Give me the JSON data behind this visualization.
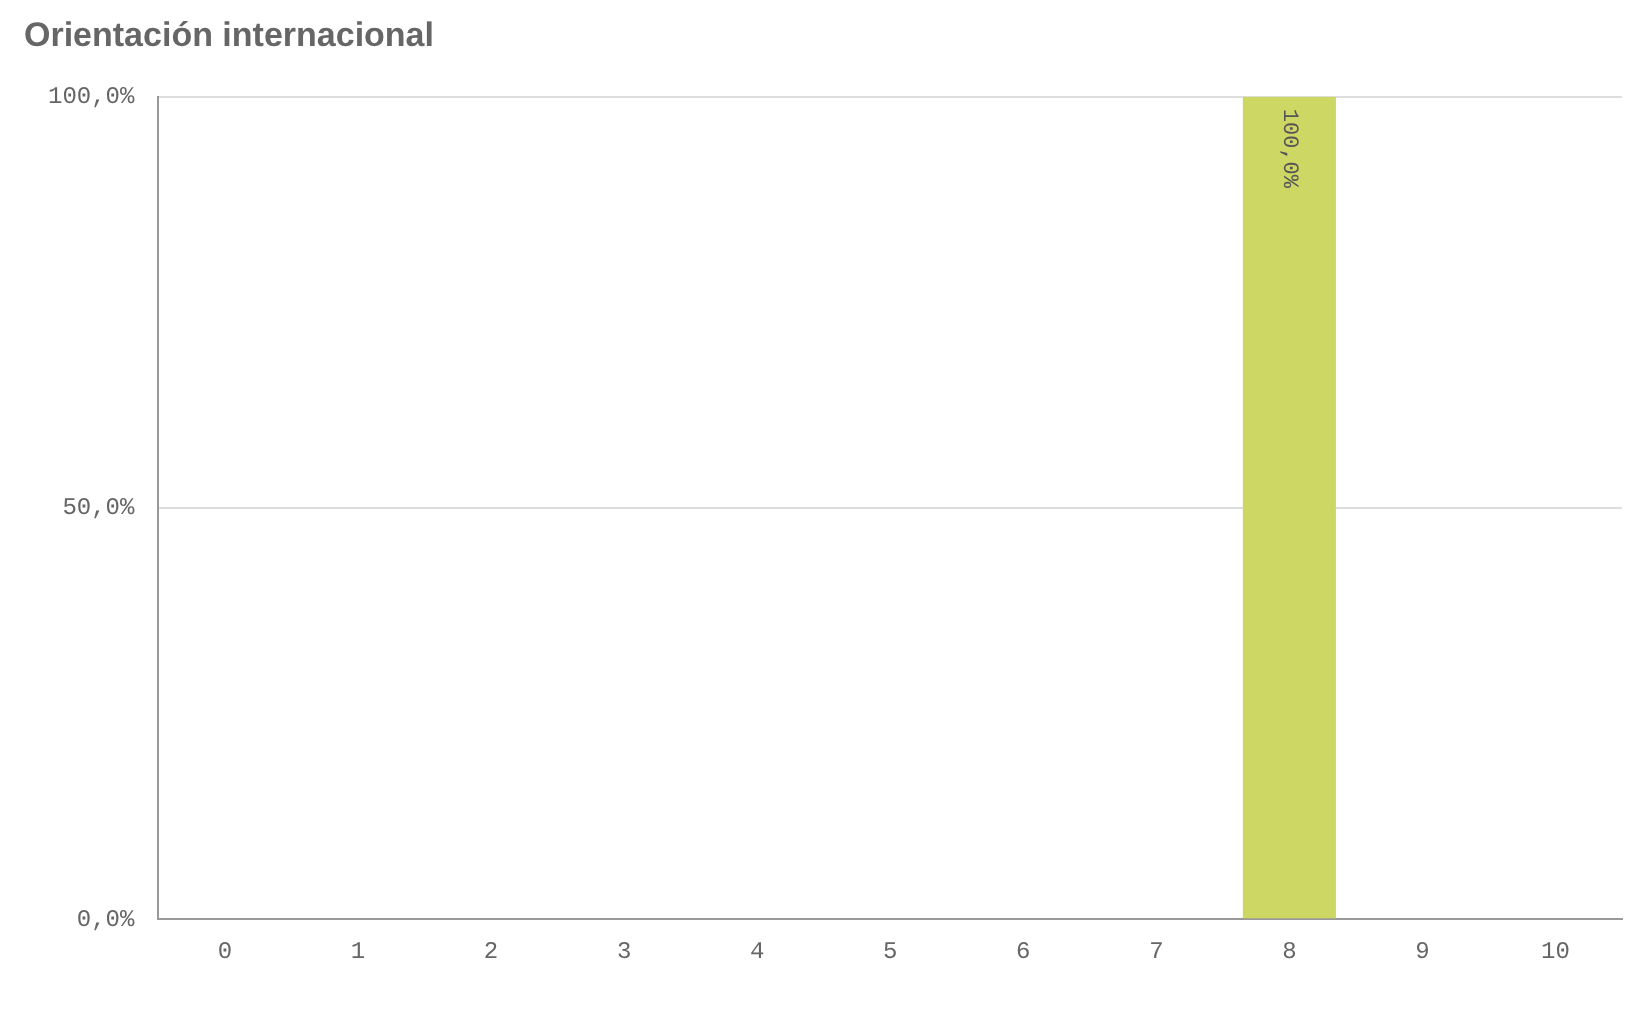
{
  "chart_data": {
    "type": "bar",
    "title": "Orientación internacional",
    "categories": [
      "0",
      "1",
      "2",
      "3",
      "4",
      "5",
      "6",
      "7",
      "8",
      "9",
      "10"
    ],
    "values": [
      0,
      0,
      0,
      0,
      0,
      0,
      0,
      0,
      100,
      0,
      0
    ],
    "value_labels": [
      null,
      null,
      null,
      null,
      null,
      null,
      null,
      null,
      "100,0%",
      null,
      null
    ],
    "color": "#cdd763",
    "ylim": [
      0,
      100
    ],
    "yticks": [
      {
        "value": 0,
        "label": "0,0%"
      },
      {
        "value": 50,
        "label": "50,0%"
      },
      {
        "value": 100,
        "label": "100,0%"
      }
    ],
    "grid": "y"
  }
}
